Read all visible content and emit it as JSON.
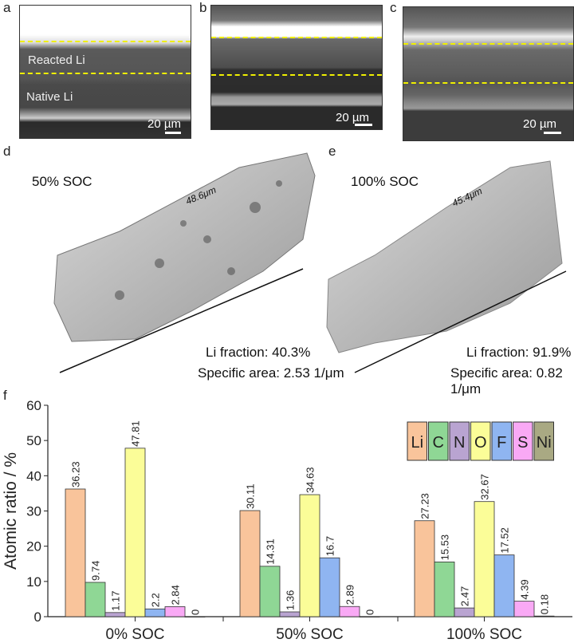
{
  "panels": {
    "a": {
      "label": "a",
      "reacted": "Reacted Li",
      "native": "Native Li",
      "scale": "20 µm"
    },
    "b": {
      "label": "b",
      "scale": "20 µm"
    },
    "c": {
      "label": "c",
      "scale": "20 µm"
    },
    "d": {
      "label": "d",
      "title": "50% SOC",
      "length": "48.6μm",
      "fraction": "Li fraction: 40.3%",
      "area": "Specific area: 2.53 1/μm"
    },
    "e": {
      "label": "e",
      "title": "100% SOC",
      "length": "45.4μm",
      "fraction": "Li fraction: 91.9%",
      "area": "Specific area: 0.82 1/μm"
    },
    "f": {
      "label": "f"
    }
  },
  "chart_data": {
    "type": "bar",
    "ylabel": "Atomic ratio / %",
    "ylim": [
      0,
      60
    ],
    "yticks": [
      "0",
      "10",
      "20",
      "30",
      "40",
      "50",
      "60"
    ],
    "categories": [
      "0% SOC",
      "50% SOC",
      "100% SOC"
    ],
    "legend_position": "top-right",
    "series": [
      {
        "name": "Li",
        "color": "#f9c49b",
        "values": [
          36.23,
          30.11,
          27.23
        ],
        "labels": [
          "36.23",
          "30.11",
          "27.23"
        ]
      },
      {
        "name": "C",
        "color": "#8fd795",
        "values": [
          9.74,
          14.31,
          15.53
        ],
        "labels": [
          "9.74",
          "14.31",
          "15.53"
        ]
      },
      {
        "name": "N",
        "color": "#b9a4d1",
        "values": [
          1.17,
          1.36,
          2.47
        ],
        "labels": [
          "1.17",
          "1.36",
          "2.47"
        ]
      },
      {
        "name": "O",
        "color": "#fbfd98",
        "values": [
          47.81,
          34.63,
          32.67
        ],
        "labels": [
          "47.81",
          "34.63",
          "32.67"
        ]
      },
      {
        "name": "F",
        "color": "#8fb5f1",
        "values": [
          2.2,
          16.7,
          17.52
        ],
        "labels": [
          "2.2",
          "16.7",
          "17.52"
        ]
      },
      {
        "name": "S",
        "color": "#f9a9f5",
        "values": [
          2.84,
          2.89,
          4.39
        ],
        "labels": [
          "2.84",
          "2.89",
          "4.39"
        ]
      },
      {
        "name": "Ni",
        "color": "#a9a983",
        "values": [
          0,
          0,
          0.18
        ],
        "labels": [
          "0",
          "0",
          "0.18"
        ]
      }
    ]
  }
}
